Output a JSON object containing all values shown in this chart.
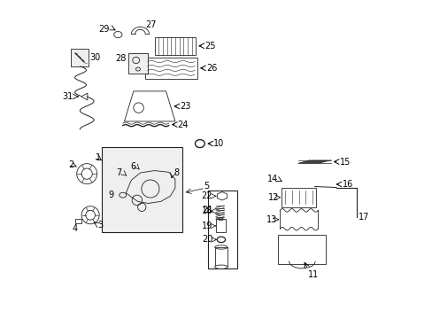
{
  "bg_color": "#ffffff",
  "fig_width": 4.89,
  "fig_height": 3.6,
  "dpi": 100,
  "arrow_color": "#000000",
  "text_color": "#000000",
  "part_color": "#222222",
  "label_fontsize": 7.0
}
